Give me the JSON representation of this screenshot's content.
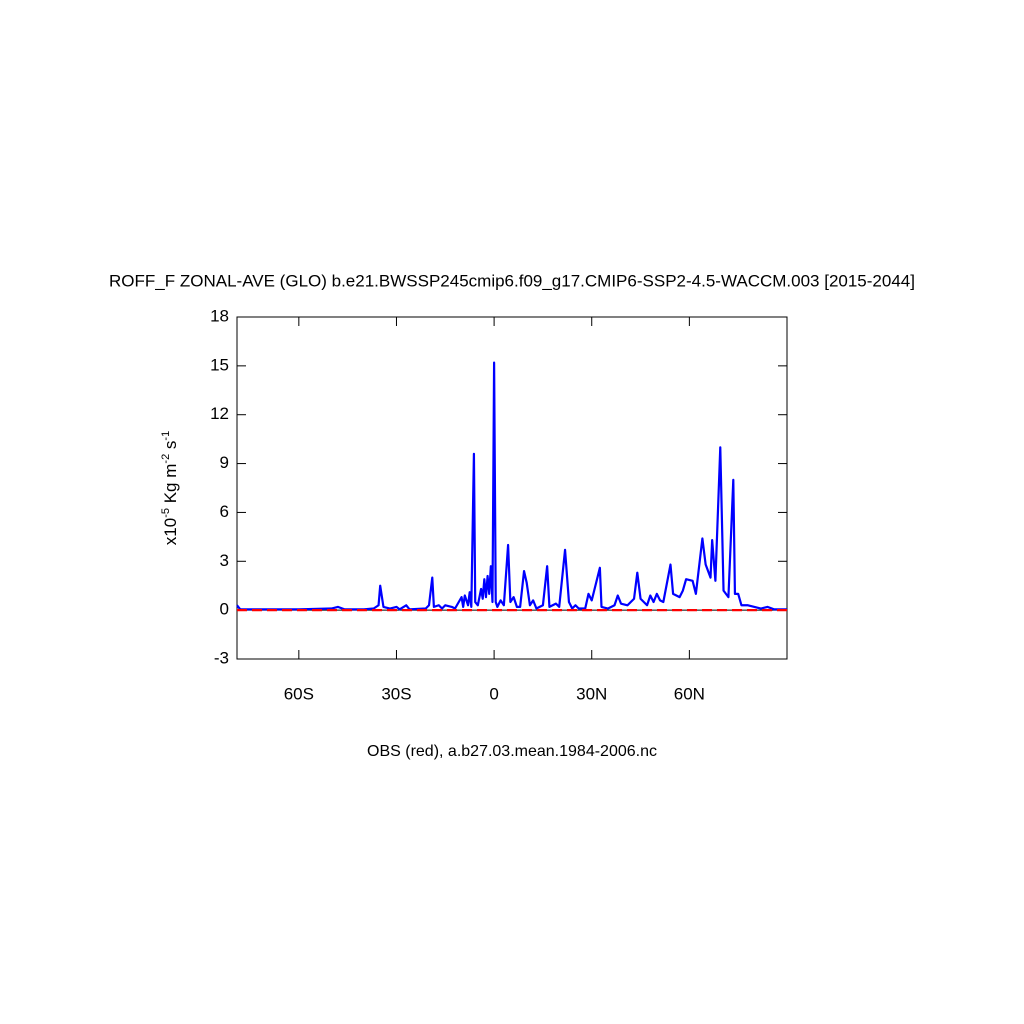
{
  "chart_data": {
    "type": "line",
    "title": "ROFF_F ZONAL-AVE (GLO) b.e21.BWSSP245cmip6.f09_g17.CMIP6-SSP2-4.5-WACCM.003 [2015-2044]",
    "subtitle": "OBS (red), a.b27.03.mean.1984-2006.nc",
    "ylabel_parts": [
      {
        "text": "x10"
      },
      {
        "text": "-5",
        "sup": true
      },
      {
        "text": " Kg m"
      },
      {
        "text": "-2",
        "sup": true
      },
      {
        "text": " s"
      },
      {
        "text": "-1",
        "sup": true
      }
    ],
    "xlim": [
      -79,
      90
    ],
    "ylim": [
      -3,
      18
    ],
    "xticks": [
      {
        "value": -60,
        "label": "60S"
      },
      {
        "value": -30,
        "label": "30S"
      },
      0,
      {
        "value": 30,
        "label": "30N"
      },
      {
        "value": 60,
        "label": "60N"
      }
    ],
    "yticks": [
      -3,
      0,
      3,
      6,
      9,
      12,
      15,
      18
    ],
    "series": [
      {
        "name": "OBS",
        "color": "#ff0000",
        "dashed": true,
        "x": [
          -79,
          90
        ],
        "values": [
          0,
          0
        ]
      },
      {
        "name": "b.e21.BWSSP245cmip6.f09_g17.CMIP6-SSP2-4.5-WACCM.003",
        "color": "#0000ff",
        "dashed": false,
        "x": [
          -79,
          -78,
          -70,
          -60,
          -50,
          -48,
          -46,
          -40,
          -37,
          -35.5,
          -35,
          -34,
          -32,
          -30,
          -29,
          -27,
          -26,
          -21,
          -20,
          -19,
          -18.5,
          -17,
          -16,
          -15,
          -13,
          -12,
          -10,
          -9.5,
          -9,
          -8,
          -7.5,
          -7,
          -6.2,
          -5.8,
          -5,
          -4,
          -3.5,
          -3,
          -2.5,
          -2,
          -1.5,
          -1,
          -0.5,
          0,
          0.5,
          1,
          2,
          3,
          4.3,
          5,
          6,
          7,
          8,
          9.2,
          10,
          11,
          12,
          13,
          15,
          16.3,
          17,
          19,
          20,
          21.8,
          23,
          24,
          25,
          26,
          28,
          29,
          30,
          31,
          32.5,
          33,
          35,
          37,
          38,
          39,
          41,
          43,
          44,
          45,
          46,
          47,
          48,
          49,
          50,
          51,
          52,
          54.2,
          55,
          57,
          58,
          59,
          61,
          62,
          64,
          65,
          66.5,
          67,
          68,
          69.5,
          70.5,
          72,
          73.5,
          74,
          75,
          76,
          78,
          80,
          82,
          84,
          86,
          90
        ],
        "values": [
          0.3,
          0.05,
          0.05,
          0.05,
          0.1,
          0.2,
          0.05,
          0.05,
          0.1,
          0.3,
          1.5,
          0.2,
          0.1,
          0.2,
          0.05,
          0.3,
          0.05,
          0.1,
          0.3,
          2.0,
          0.2,
          0.3,
          0.1,
          0.3,
          0.2,
          0.1,
          0.8,
          0.2,
          0.9,
          0.3,
          1.1,
          0.2,
          9.6,
          0.5,
          0.3,
          1.3,
          0.7,
          1.9,
          0.8,
          2.1,
          1.0,
          2.7,
          0.5,
          15.2,
          0.5,
          0.2,
          0.6,
          0.3,
          4.0,
          0.5,
          0.8,
          0.2,
          0.2,
          2.4,
          1.7,
          0.3,
          0.6,
          0.1,
          0.3,
          2.7,
          0.2,
          0.4,
          0.2,
          3.7,
          0.5,
          0.1,
          0.3,
          0.1,
          0.1,
          1.0,
          0.6,
          1.4,
          2.6,
          0.2,
          0.1,
          0.3,
          0.9,
          0.4,
          0.3,
          0.7,
          2.3,
          0.7,
          0.5,
          0.3,
          0.9,
          0.5,
          1.0,
          0.6,
          0.5,
          2.8,
          1.0,
          0.8,
          1.2,
          1.9,
          1.8,
          1.0,
          4.4,
          2.8,
          2.0,
          4.3,
          1.8,
          10.0,
          1.2,
          0.8,
          8.0,
          1.0,
          1.0,
          0.3,
          0.3,
          0.2,
          0.1,
          0.2,
          0.05,
          0.05
        ]
      }
    ]
  }
}
